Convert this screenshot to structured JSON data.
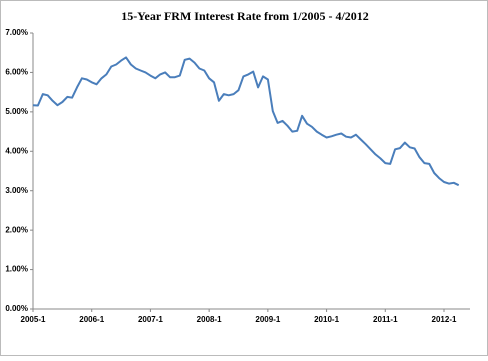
{
  "chart_data": {
    "type": "line",
    "title": "15-Year FRM Interest Rate from 1/2005 - 4/2012",
    "categories": [
      "2005-1",
      null,
      null,
      null,
      null,
      null,
      null,
      null,
      null,
      null,
      null,
      null,
      "2006-1",
      null,
      null,
      null,
      null,
      null,
      null,
      null,
      null,
      null,
      null,
      null,
      "2007-1",
      null,
      null,
      null,
      null,
      null,
      null,
      null,
      null,
      null,
      null,
      null,
      "2008-1",
      null,
      null,
      null,
      null,
      null,
      null,
      null,
      null,
      null,
      null,
      null,
      "2009-1",
      null,
      null,
      null,
      null,
      null,
      null,
      null,
      null,
      null,
      null,
      null,
      "2010-1",
      null,
      null,
      null,
      null,
      null,
      null,
      null,
      null,
      null,
      null,
      null,
      "2011-1",
      null,
      null,
      null,
      null,
      null,
      null,
      null,
      null,
      null,
      null,
      null,
      "2012-1",
      null,
      null,
      null
    ],
    "series": [
      {
        "color": "#4a7ebb",
        "values": [
          5.17,
          5.16,
          5.45,
          5.42,
          5.28,
          5.17,
          5.25,
          5.38,
          5.36,
          5.62,
          5.85,
          5.82,
          5.75,
          5.7,
          5.85,
          5.95,
          6.15,
          6.2,
          6.3,
          6.38,
          6.2,
          6.1,
          6.05,
          6.0,
          5.92,
          5.85,
          5.95,
          6.0,
          5.88,
          5.88,
          5.92,
          6.32,
          6.35,
          6.25,
          6.1,
          6.05,
          5.85,
          5.75,
          5.28,
          5.45,
          5.42,
          5.45,
          5.55,
          5.9,
          5.95,
          6.02,
          5.62,
          5.9,
          5.82,
          5.02,
          4.72,
          4.77,
          4.65,
          4.5,
          4.52,
          4.9,
          4.7,
          4.62,
          4.5,
          4.42,
          4.35,
          4.38,
          4.42,
          4.45,
          4.37,
          4.35,
          4.42,
          4.3,
          4.18,
          4.05,
          3.92,
          3.82,
          3.7,
          3.68,
          4.05,
          4.08,
          4.22,
          4.1,
          4.07,
          3.85,
          3.7,
          3.68,
          3.45,
          3.32,
          3.22,
          3.18,
          3.2,
          3.14
        ]
      }
    ],
    "ylim": [
      0,
      7
    ],
    "yticks": [
      {
        "value": 0,
        "label": "0.00%"
      },
      {
        "value": 1,
        "label": "1.00%"
      },
      {
        "value": 2,
        "label": "2.00%"
      },
      {
        "value": 3,
        "label": "3.00%"
      },
      {
        "value": 4,
        "label": "4.00%"
      },
      {
        "value": 5,
        "label": "5.00%"
      },
      {
        "value": 6,
        "label": "6.00%"
      },
      {
        "value": 7,
        "label": "7.00%"
      }
    ],
    "grid": false
  }
}
